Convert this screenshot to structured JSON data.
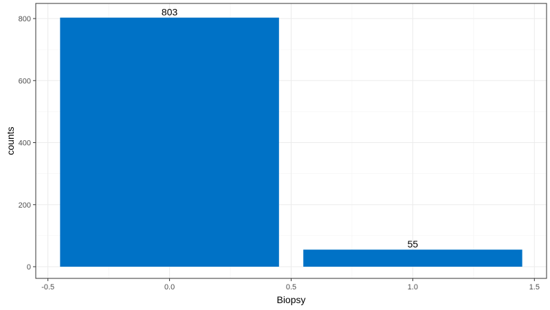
{
  "chart_data": {
    "type": "bar",
    "x": [
      0.0,
      1.0
    ],
    "values": [
      803,
      55
    ],
    "data_labels": [
      "803",
      "55"
    ],
    "bar_color": "#0072C6",
    "xlabel": "Biopsy",
    "ylabel": "counts",
    "xlim": [
      -0.5,
      1.5
    ],
    "ylim": [
      0,
      800
    ],
    "x_ticks": [
      -0.5,
      0.0,
      0.5,
      1.0,
      1.5
    ],
    "x_tick_labels": [
      "-0.5",
      "0.0",
      "0.5",
      "1.0",
      "1.5"
    ],
    "y_ticks": [
      0,
      200,
      400,
      600,
      800
    ],
    "y_tick_labels": [
      "0",
      "200",
      "400",
      "600",
      "800"
    ],
    "bar_width": 0.9,
    "grid": true,
    "legend": "none",
    "theme": "bw"
  }
}
